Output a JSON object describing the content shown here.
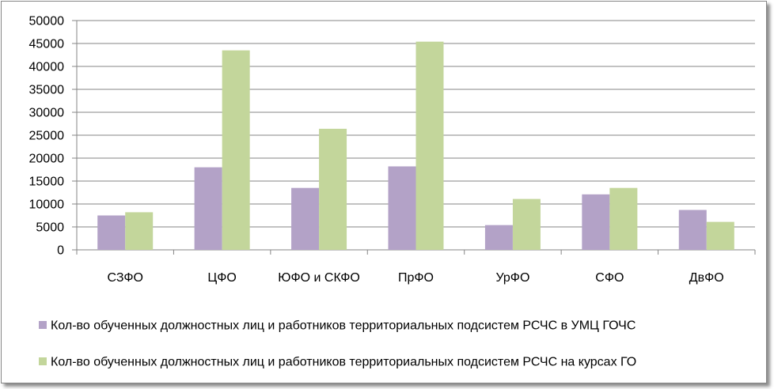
{
  "chart_data": {
    "type": "bar",
    "categories": [
      "СЗФО",
      "ЦФО",
      "ЮФО и СКФО",
      "ПрФО",
      "УрФО",
      "СФО",
      "ДвФО"
    ],
    "series": [
      {
        "name": "Кол-во обученных должностных лиц и работников территориальных подсистем РСЧС в УМЦ ГОЧС",
        "color": "#b3a2c7",
        "values": [
          7500,
          18000,
          13500,
          18200,
          5400,
          12100,
          8700
        ]
      },
      {
        "name": "Кол-во обученных должностных лиц и работников территориальных подсистем РСЧС на курсах ГО",
        "color": "#c3d69b",
        "values": [
          8200,
          43500,
          26400,
          45400,
          11100,
          13500,
          6100
        ]
      }
    ],
    "y_ticks": [
      "0",
      "5000",
      "10000",
      "15000",
      "20000",
      "25000",
      "30000",
      "35000",
      "40000",
      "45000",
      "50000"
    ],
    "ylim": [
      0,
      50000
    ],
    "title": "",
    "xlabel": "",
    "ylabel": "",
    "grid": true,
    "legend_position": "bottom"
  }
}
